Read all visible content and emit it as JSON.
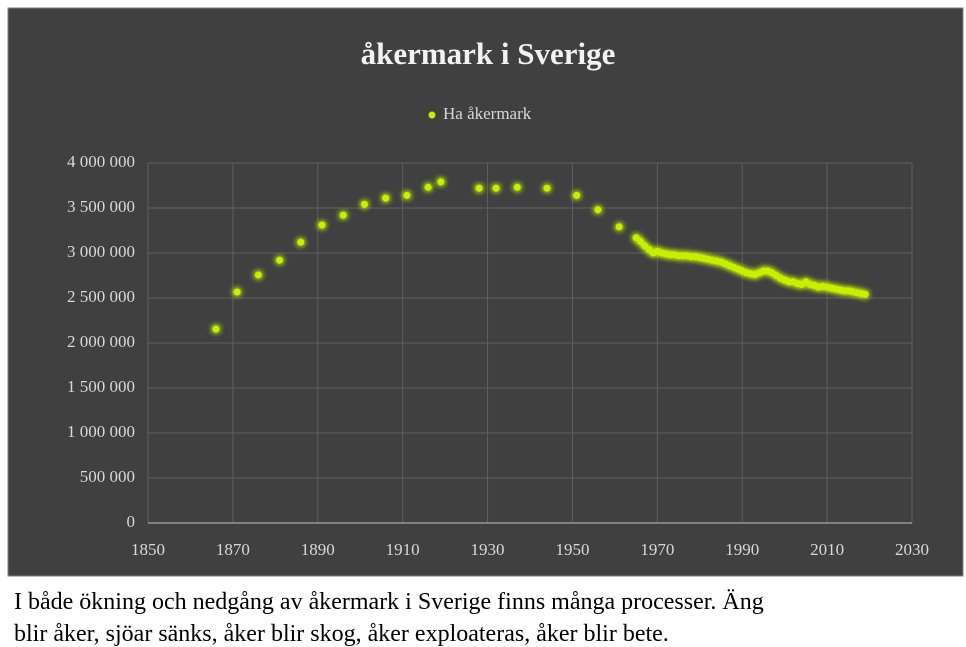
{
  "chart_data": {
    "type": "scatter",
    "title": "åkermark i Sverige",
    "x": [
      1866,
      1871,
      1876,
      1881,
      1886,
      1891,
      1896,
      1901,
      1906,
      1911,
      1916,
      1919,
      1928,
      1932,
      1937,
      1944,
      1951,
      1956,
      1961,
      1965,
      1966,
      1967,
      1968,
      1969,
      1970,
      1971,
      1972,
      1973,
      1974,
      1975,
      1976,
      1977,
      1978,
      1979,
      1980,
      1981,
      1982,
      1983,
      1984,
      1985,
      1986,
      1987,
      1988,
      1989,
      1990,
      1991,
      1992,
      1993,
      1994,
      1995,
      1996,
      1997,
      1998,
      1999,
      2000,
      2001,
      2002,
      2003,
      2004,
      2005,
      2006,
      2007,
      2008,
      2009,
      2010,
      2011,
      2012,
      2013,
      2014,
      2015,
      2016,
      2017,
      2018,
      2019
    ],
    "series": [
      {
        "name": "Ha åkermark",
        "color": "#c6f000",
        "values": [
          2155000,
          2567000,
          2756000,
          2920000,
          3120000,
          3310000,
          3420000,
          3540000,
          3610000,
          3640000,
          3730000,
          3790000,
          3720000,
          3720000,
          3730000,
          3720000,
          3640000,
          3480000,
          3290000,
          3170000,
          3130000,
          3080000,
          3040000,
          3000000,
          3020000,
          3000000,
          2990000,
          2980000,
          2980000,
          2970000,
          2970000,
          2970000,
          2960000,
          2960000,
          2950000,
          2940000,
          2930000,
          2920000,
          2910000,
          2900000,
          2880000,
          2860000,
          2840000,
          2820000,
          2800000,
          2780000,
          2770000,
          2760000,
          2780000,
          2800000,
          2800000,
          2780000,
          2750000,
          2720000,
          2700000,
          2680000,
          2680000,
          2660000,
          2650000,
          2680000,
          2650000,
          2640000,
          2620000,
          2630000,
          2620000,
          2610000,
          2600000,
          2590000,
          2580000,
          2580000,
          2570000,
          2560000,
          2550000,
          2540000
        ]
      }
    ],
    "xlim": [
      1850,
      2030
    ],
    "xticks": [
      1850,
      1870,
      1890,
      1910,
      1930,
      1950,
      1970,
      1990,
      2010,
      2030
    ],
    "ylim": [
      0,
      4000000
    ],
    "yticks": [
      0,
      {
        "value": 500000,
        "label": "500 000"
      },
      {
        "value": 1000000,
        "label": "1 000 000"
      },
      {
        "value": 1500000,
        "label": "1 500 000"
      },
      {
        "value": 2000000,
        "label": "2 000 000"
      },
      {
        "value": 2500000,
        "label": "2 500 000"
      },
      {
        "value": 3000000,
        "label": "3 000 000"
      },
      {
        "value": 3500000,
        "label": "3 500 000"
      },
      {
        "value": 4000000,
        "label": "4 000 000"
      }
    ],
    "grid": true
  },
  "caption": [
    "I både ökning och nedgång av åkermark i Sverige finns många processer. Äng",
    "blir åker, sjöar sänks, åker blir skog, åker exploateras, åker blir bete."
  ]
}
